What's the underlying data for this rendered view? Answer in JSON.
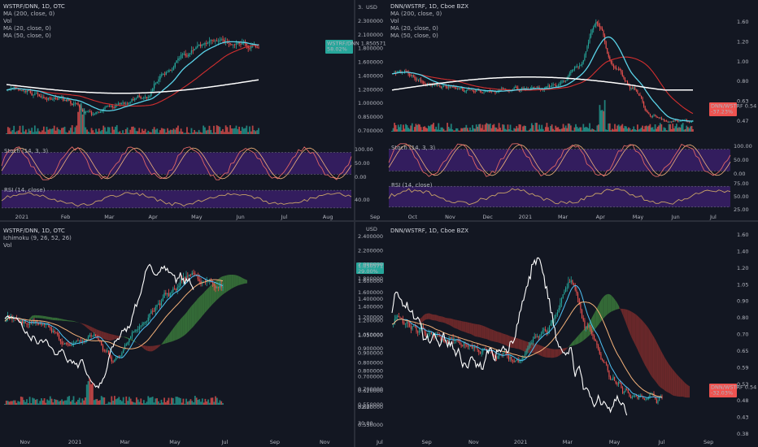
{
  "chart_data": [
    {
      "type": "line",
      "symbol_header": "WSTRF/DNN, 1D, OTC",
      "indicator_labels": [
        "MA (200, close, 0)",
        "Vol",
        "MA (20, close, 0)",
        "MA (50, close, 0)"
      ],
      "price_tag": {
        "label": "WSTRF/DNN",
        "value": "1.850571",
        "change": "58.02%"
      },
      "y_ticks": [
        "2.100000",
        "1.800000",
        "1.600000",
        "1.400000",
        "1.200000",
        "1.000000",
        "0.850000",
        "0.700000"
      ],
      "x_ticks": [
        "2021",
        "Feb",
        "Mar",
        "Apr",
        "May",
        "Jun",
        "Jul",
        "Aug"
      ],
      "oscillators": [
        {
          "label": "Stoch (14, 3, 3)",
          "ticks": [
            "100.00",
            "50.00",
            "0.00"
          ]
        },
        {
          "label": "RSI (14, close)",
          "ticks": [
            "40.00"
          ]
        }
      ]
    },
    {
      "type": "line",
      "symbol_header": "DNN/WSTRF, 1D, Cboe BZX",
      "indicator_labels": [
        "MA (200, close, 0)",
        "Vol",
        "MA (20, close, 0)",
        "MA (50, close, 0)"
      ],
      "currency": "USD",
      "price_tag": {
        "label": "DNN/WSTRF",
        "value": "0.54",
        "change": "-37.23%"
      },
      "left_ticks": [
        "3.",
        "2.300000",
        "2.100000",
        "1.800000",
        "1.600000",
        "1.400000",
        "1.200000",
        "1.000000",
        "0.850000",
        "0.700000"
      ],
      "y_ticks": [
        "1.60",
        "1.20",
        "1.00",
        "0.80",
        "0.63",
        "0.47"
      ],
      "x_ticks": [
        "Sep",
        "Oct",
        "Nov",
        "Dec",
        "2021",
        "Mar",
        "Apr",
        "May",
        "Jun",
        "Jul"
      ],
      "oscillators": [
        {
          "label": "Stoch (14, 3, 3)",
          "ticks": [
            "100.00",
            "50.00",
            "0.00"
          ]
        },
        {
          "label": "RSI (14, close)",
          "ticks": [
            "75.00",
            "50.00",
            "25.00"
          ]
        }
      ]
    },
    {
      "type": "line",
      "symbol_header": "WSTRF/DNN, 1D, OTC",
      "indicator_labels": [
        "Ichimoku (9, 26, 52, 26)",
        "Vol"
      ],
      "price_tag": {
        "value": "1.850571",
        "change": "29.00%"
      },
      "y_ticks": [
        "1.600000",
        "1.400000",
        "1.200000",
        "1.050000",
        "0.900000",
        "0.800000",
        "0.700000",
        "0.620000",
        "0.550000",
        "32.00",
        "30.00"
      ],
      "x_ticks": [
        "Nov",
        "2021",
        "Mar",
        "May",
        "Jul",
        "Sep",
        "Nov"
      ]
    },
    {
      "type": "line",
      "symbol_header": "DNN/WSTRF, 1D, Cboe BZX",
      "currency": "USD",
      "price_tag": {
        "label": "DNN/WSTRF",
        "value": "0.54",
        "change": "-32.03%"
      },
      "left_ticks": [
        "2.400000",
        "2.200000",
        "2.000000",
        "1.800000",
        "1.600000",
        "1.400000",
        "1.200000",
        "1.050000",
        "0.900000",
        "0.800000",
        "0.700000",
        "0.620000",
        "0.550000"
      ],
      "y_ticks": [
        "1.60",
        "1.40",
        "1.20",
        "1.05",
        "0.90",
        "0.80",
        "0.70",
        "0.65",
        "0.59",
        "0.53",
        "0.48",
        "0.43",
        "0.38"
      ],
      "x_ticks": [
        "Jul",
        "Sep",
        "Nov",
        "2021",
        "Mar",
        "May",
        "Jul",
        "Sep"
      ]
    }
  ],
  "colors": {
    "background": "#131722",
    "up": "#26a69a",
    "down": "#ef5350",
    "ma20": "#5ad3e8",
    "ma50": "#d32f2f",
    "ma200": "#ffffff",
    "stoch_k": "#e06666",
    "stoch_d": "#f0b27a",
    "osc_band": "#3c1f6e",
    "rsi": "#c7a267",
    "kumo_bull": "#3b7a3b",
    "kumo_bear": "#7a2b2b",
    "tenkan": "#4fc3f7",
    "kijun": "#f5b27a",
    "tag_green": "#26a69a",
    "tag_red": "#ef5350"
  }
}
